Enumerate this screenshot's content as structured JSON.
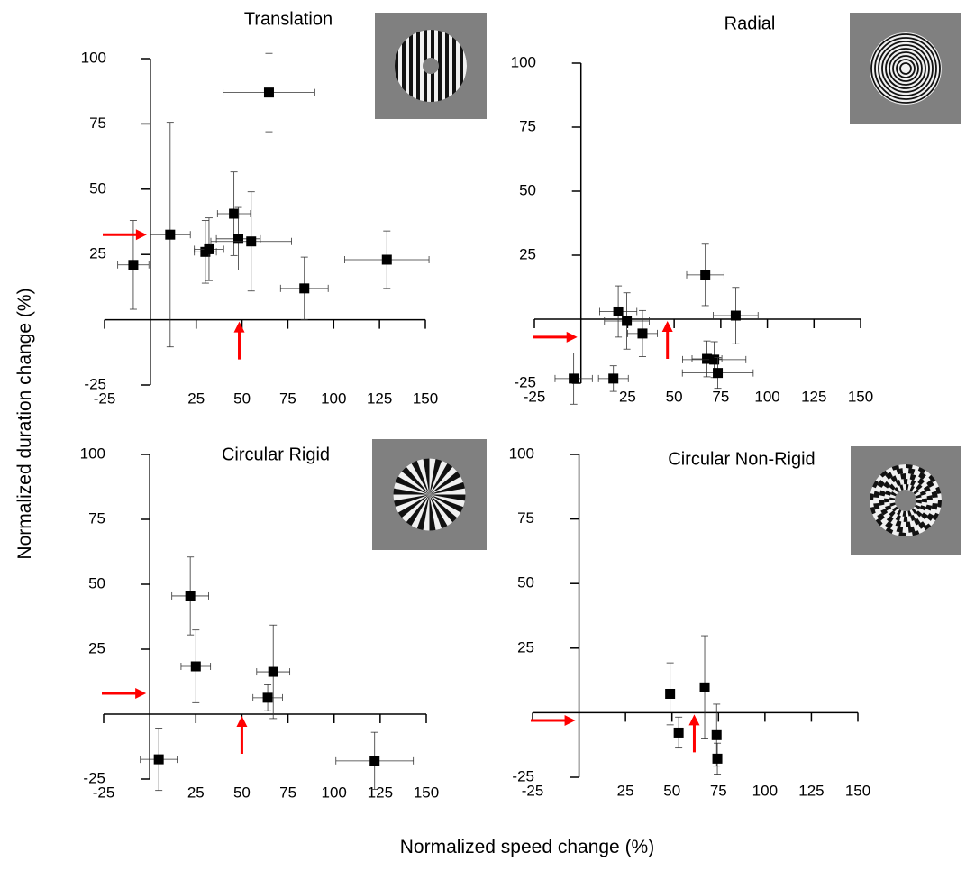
{
  "axis_labels": {
    "x": "Normalized speed change (%)",
    "y": "Normalized duration change (%)"
  },
  "chart_data": [
    {
      "type": "scatter",
      "title": "Translation",
      "color": "#000000",
      "arrow_color": "#ff0000",
      "x": [
        -9.3,
        10.8,
        30,
        32,
        45.6,
        48,
        55,
        64.7,
        84,
        129
      ],
      "y": [
        21,
        32.6,
        26,
        27,
        40.6,
        31,
        30,
        87,
        12,
        23
      ],
      "xerr": [
        8.5,
        11,
        6,
        8,
        9,
        12,
        22,
        25,
        13,
        23
      ],
      "yerr": [
        17,
        43,
        12,
        12,
        16,
        12,
        19,
        15,
        12,
        11
      ],
      "reference_x": 48.5,
      "reference_y": 32.6,
      "xlim": [
        -25,
        150
      ],
      "ylim": [
        -25,
        100
      ],
      "xticks": [
        -25,
        25,
        50,
        75,
        100,
        125,
        150
      ],
      "yticks": [
        -25,
        25,
        50,
        75,
        100
      ]
    },
    {
      "type": "scatter",
      "title": "Radial",
      "color": "#000000",
      "arrow_color": "#ff0000",
      "x": [
        -3.9,
        17.4,
        20,
        24.6,
        33,
        66.7,
        67.6,
        71.5,
        73.4,
        83
      ],
      "y": [
        -23.2,
        -23.2,
        3,
        -0.7,
        -5.6,
        17.3,
        -15.5,
        -15.8,
        -21,
        1.4
      ],
      "xerr": [
        10,
        8,
        10,
        12,
        8,
        10,
        8,
        17,
        19,
        12
      ],
      "yerr": [
        10,
        5,
        10,
        11,
        9,
        12,
        7,
        7,
        6,
        11
      ],
      "reference_x": 46.4,
      "reference_y": -7,
      "xlim": [
        -25,
        150
      ],
      "ylim": [
        -25,
        100
      ],
      "xticks": [
        -25,
        25,
        50,
        75,
        100,
        125,
        150
      ],
      "yticks": [
        -25,
        25,
        50,
        75,
        100
      ]
    },
    {
      "type": "scatter",
      "title": "Circular Rigid",
      "color": "#000000",
      "arrow_color": "#ff0000",
      "x": [
        4.9,
        22,
        25,
        64,
        67,
        122
      ],
      "y": [
        -17.4,
        45.5,
        18.4,
        6.3,
        16.3,
        -18
      ],
      "xerr": [
        10,
        10,
        8,
        8,
        9,
        21
      ],
      "yerr": [
        12,
        15,
        14,
        5,
        18,
        11
      ],
      "reference_x": 50,
      "reference_y": 8,
      "xlim": [
        -25,
        150
      ],
      "ylim": [
        -25,
        100
      ],
      "xticks": [
        -25,
        25,
        50,
        75,
        100,
        125,
        150
      ],
      "yticks": [
        -25,
        25,
        50,
        75,
        100
      ]
    },
    {
      "type": "scatter",
      "title": "Circular Non-Rigid",
      "color": "#000000",
      "arrow_color": "#ff0000",
      "x": [
        49,
        53.6,
        67.6,
        74,
        74.4
      ],
      "y": [
        7.3,
        -7.7,
        9.8,
        -8.7,
        -17.8
      ],
      "xerr": [
        2,
        2,
        2,
        2,
        2
      ],
      "yerr": [
        12,
        6,
        20,
        12,
        6
      ],
      "reference_x": 62,
      "reference_y": -3,
      "xlim": [
        -25,
        150
      ],
      "ylim": [
        -25,
        100
      ],
      "xticks": [
        -25,
        25,
        50,
        75,
        100,
        125,
        150
      ],
      "yticks": [
        -25,
        25,
        50,
        75,
        100
      ]
    }
  ]
}
